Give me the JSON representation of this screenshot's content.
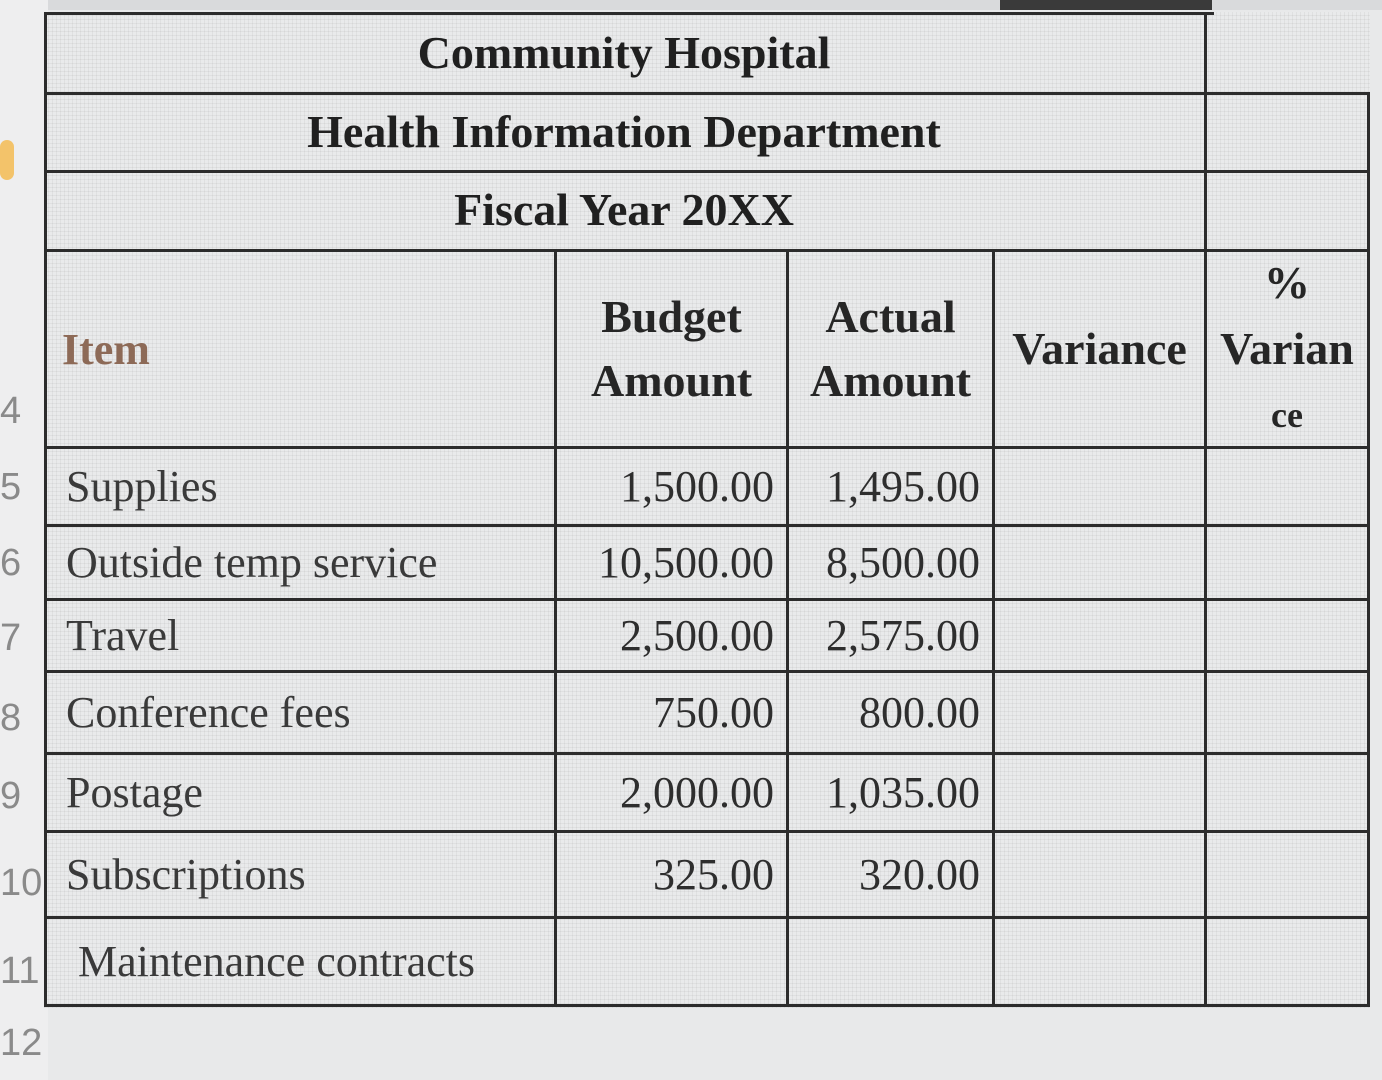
{
  "sheet": {
    "title_lines": [
      "Community Hospital",
      "Health Information Department",
      "Fiscal Year 20XX"
    ],
    "row_numbers": [
      "4",
      "5",
      "6",
      "7",
      "8",
      "9",
      "10",
      "11",
      "12"
    ],
    "headers": {
      "item": "Item",
      "budget": [
        "Budget",
        "Amount"
      ],
      "actual": [
        "Actual",
        "Amount"
      ],
      "variance": "Variance",
      "pct_variance": [
        "%",
        "Varian",
        "ce"
      ]
    },
    "rows": [
      {
        "item": "Supplies",
        "budget": "1,500.00",
        "actual": "1,495.00",
        "variance": "",
        "pct": ""
      },
      {
        "item": "Outside temp service",
        "budget": "10,500.00",
        "actual": "8,500.00",
        "variance": "",
        "pct": ""
      },
      {
        "item": "Travel",
        "budget": "2,500.00",
        "actual": "2,575.00",
        "variance": "",
        "pct": ""
      },
      {
        "item": "Conference fees",
        "budget": "750.00",
        "actual": "800.00",
        "variance": "",
        "pct": ""
      },
      {
        "item": "Postage",
        "budget": "2,000.00",
        "actual": "1,035.00",
        "variance": "",
        "pct": ""
      },
      {
        "item": "Subscriptions",
        "budget": "325.00",
        "actual": "320.00",
        "variance": "",
        "pct": ""
      },
      {
        "item": "Maintenance contracts",
        "budget": "",
        "actual": "",
        "variance": "",
        "pct": ""
      }
    ]
  }
}
